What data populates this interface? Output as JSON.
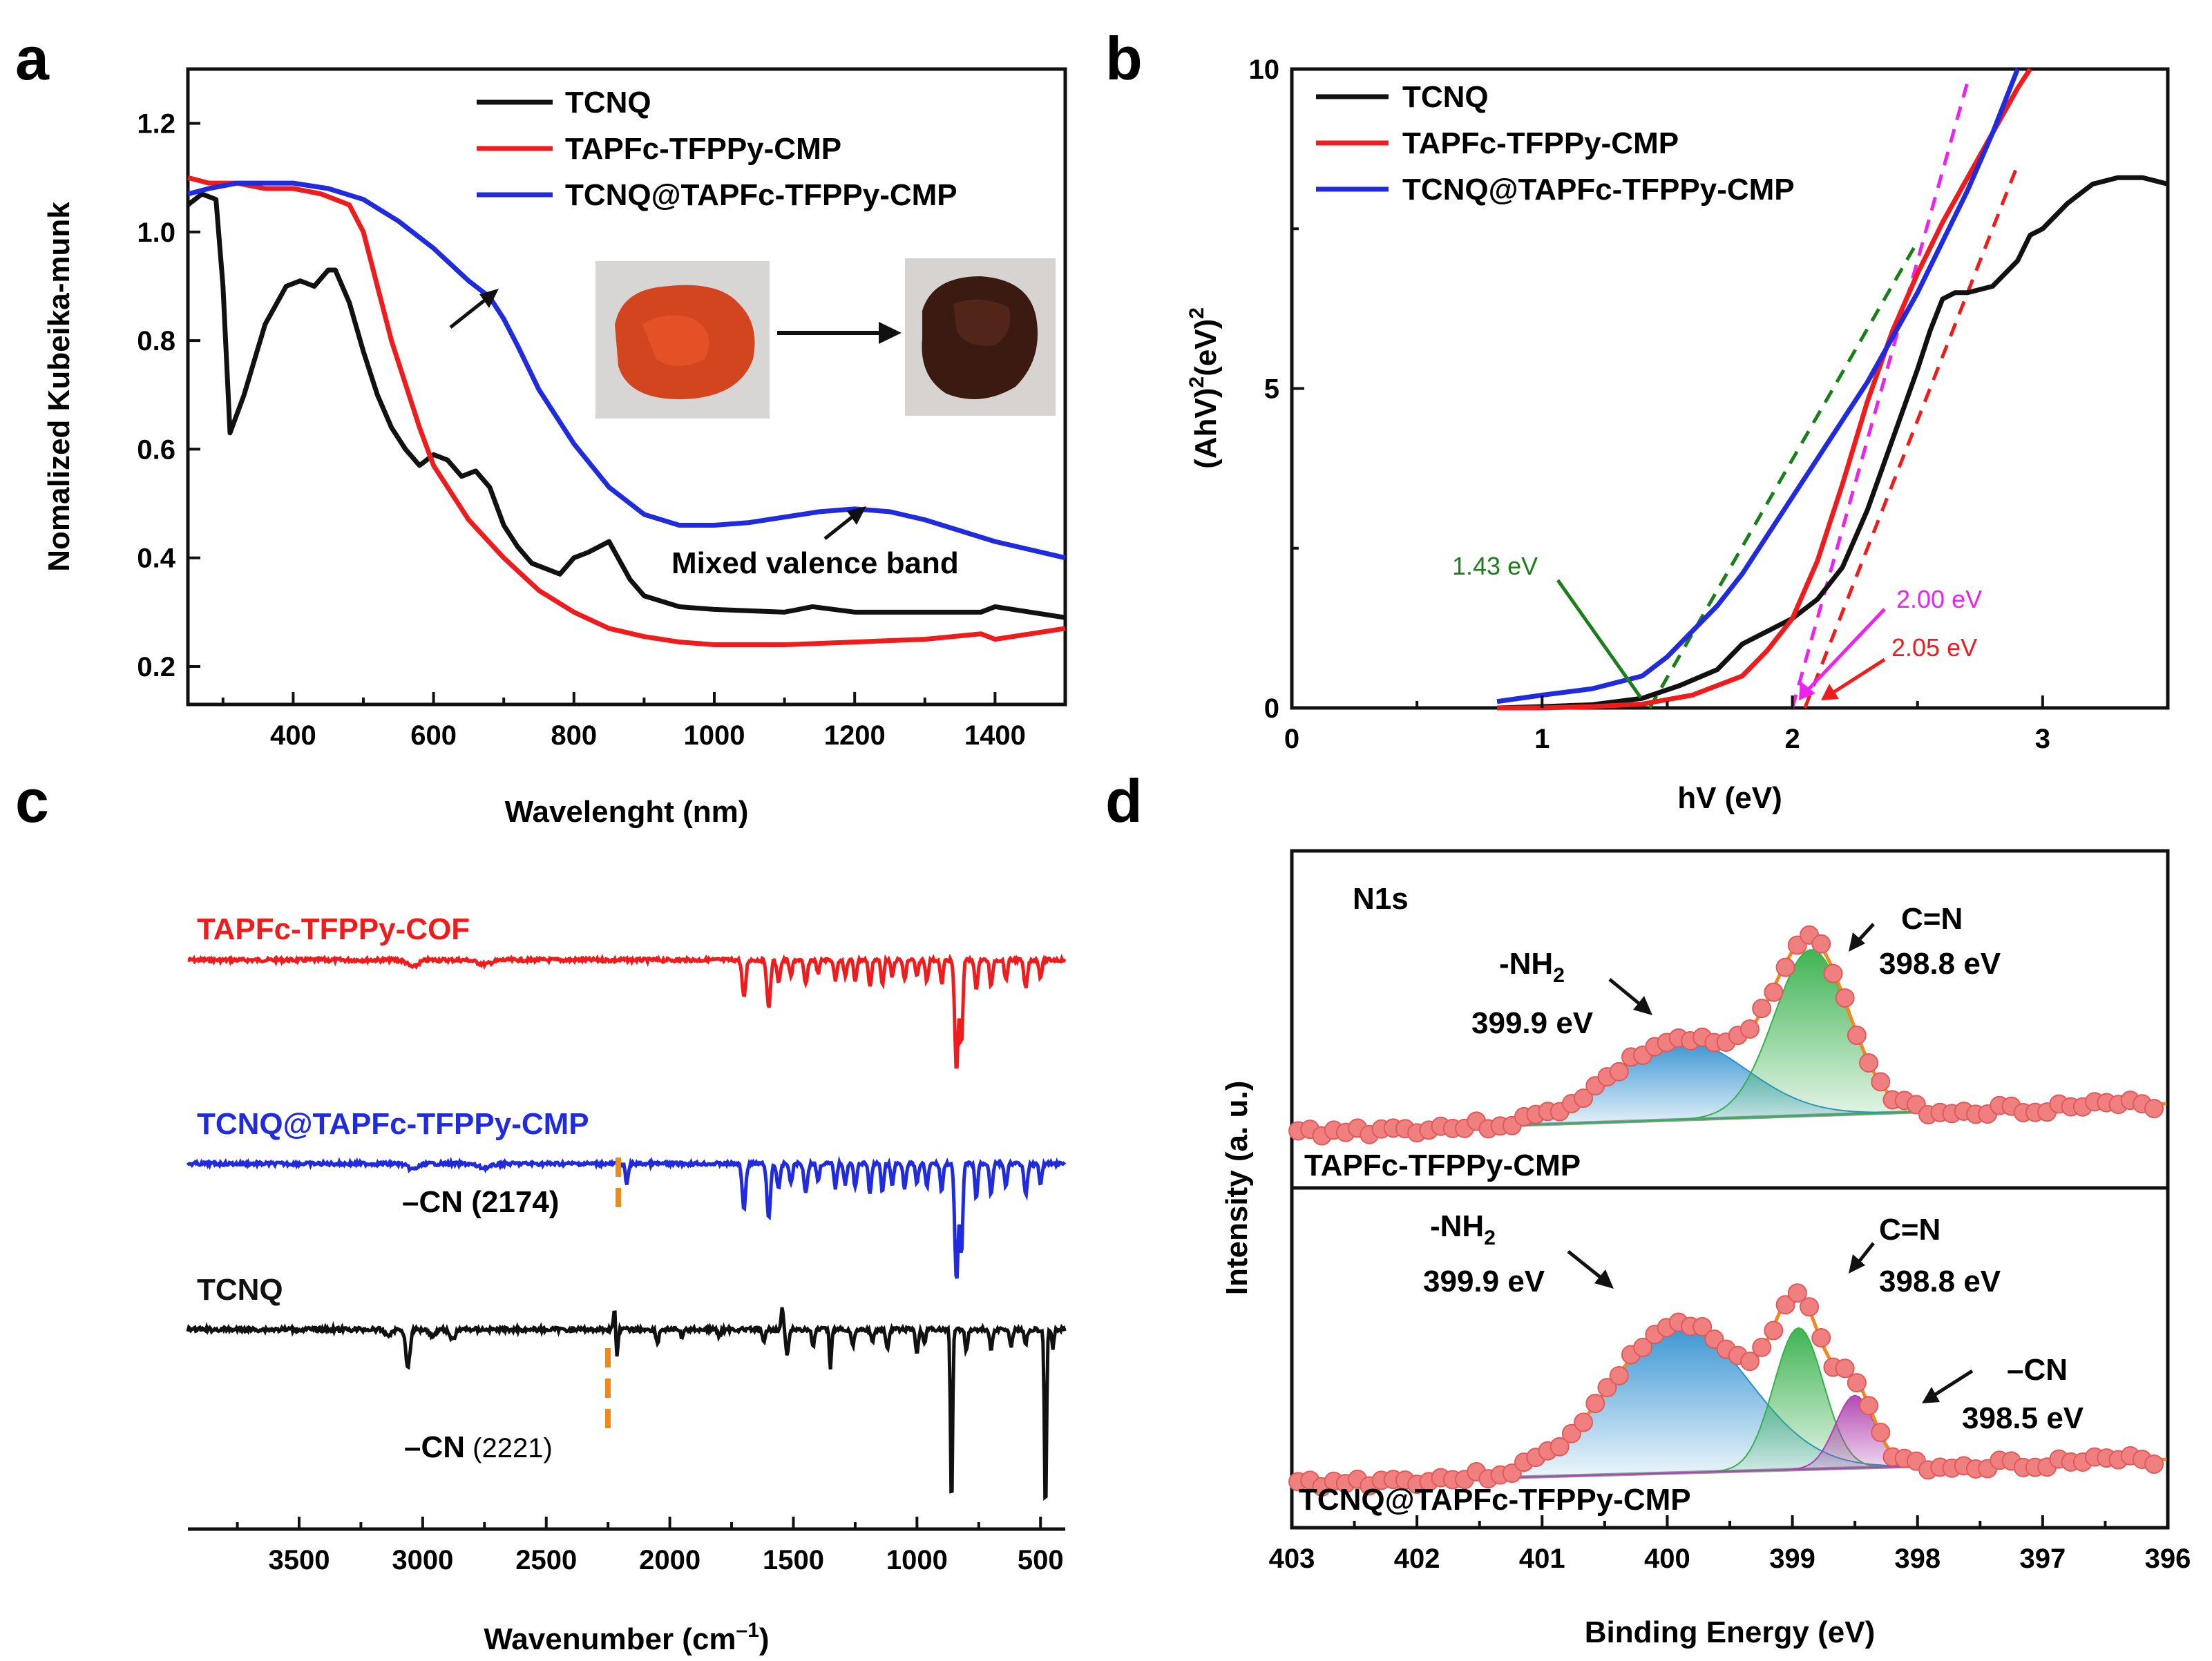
{
  "colors": {
    "black": "#111111",
    "red": "#ee1c1c",
    "blue": "#1f2bdc",
    "green": "#1a7f1a",
    "magenta": "#ee22ee",
    "orange": "#f08a1c",
    "gray": "#9a9a9a",
    "nh2_fill": "#2e8fd0",
    "cn_fill": "#35b04a",
    "cnn_fill": "#b040b0"
  },
  "chart_data": [
    {
      "id": "a",
      "panel_label": "a",
      "type": "line",
      "xlabel": "Wavelenght (nm)",
      "ylabel": "Nomalized Kubeika-munk",
      "xlim": [
        250,
        1500
      ],
      "ylim": [
        0.13,
        1.3
      ],
      "xticks": [
        400,
        600,
        800,
        1000,
        1200,
        1400
      ],
      "yticks": [
        0.2,
        0.4,
        0.6,
        0.8,
        1.0,
        1.2
      ],
      "series": [
        {
          "name": "TCNQ",
          "color": "#111111",
          "x": [
            250,
            270,
            290,
            300,
            310,
            330,
            360,
            390,
            410,
            430,
            450,
            460,
            480,
            500,
            520,
            540,
            560,
            580,
            600,
            620,
            640,
            660,
            680,
            700,
            720,
            740,
            760,
            780,
            800,
            820,
            850,
            880,
            900,
            950,
            1000,
            1100,
            1140,
            1200,
            1300,
            1380,
            1400,
            1450,
            1500
          ],
          "y": [
            1.05,
            1.07,
            1.06,
            0.9,
            0.63,
            0.7,
            0.83,
            0.9,
            0.91,
            0.9,
            0.93,
            0.93,
            0.87,
            0.78,
            0.7,
            0.64,
            0.6,
            0.57,
            0.59,
            0.58,
            0.55,
            0.56,
            0.53,
            0.46,
            0.42,
            0.39,
            0.38,
            0.37,
            0.4,
            0.41,
            0.43,
            0.36,
            0.33,
            0.31,
            0.305,
            0.3,
            0.31,
            0.3,
            0.3,
            0.3,
            0.31,
            0.3,
            0.29
          ]
        },
        {
          "name": "TAPFc-TFPPy-CMP",
          "color": "#ee1c1c",
          "x": [
            250,
            280,
            320,
            360,
            400,
            440,
            480,
            500,
            520,
            540,
            560,
            580,
            600,
            650,
            700,
            750,
            800,
            850,
            900,
            950,
            1000,
            1100,
            1200,
            1300,
            1380,
            1400,
            1450,
            1500
          ],
          "y": [
            1.1,
            1.09,
            1.09,
            1.08,
            1.08,
            1.07,
            1.05,
            1.0,
            0.9,
            0.8,
            0.72,
            0.64,
            0.57,
            0.47,
            0.4,
            0.34,
            0.3,
            0.27,
            0.255,
            0.245,
            0.24,
            0.24,
            0.245,
            0.25,
            0.26,
            0.25,
            0.26,
            0.27
          ]
        },
        {
          "name": "TCNQ@TAPFc-TFPPy-CMP",
          "color": "#1f2bdc",
          "x": [
            250,
            280,
            320,
            360,
            400,
            450,
            500,
            550,
            600,
            650,
            680,
            700,
            720,
            750,
            800,
            850,
            900,
            950,
            1000,
            1050,
            1100,
            1150,
            1200,
            1250,
            1300,
            1350,
            1400,
            1450,
            1500
          ],
          "y": [
            1.07,
            1.08,
            1.09,
            1.09,
            1.09,
            1.08,
            1.06,
            1.02,
            0.97,
            0.91,
            0.88,
            0.84,
            0.79,
            0.71,
            0.61,
            0.53,
            0.48,
            0.46,
            0.46,
            0.465,
            0.475,
            0.485,
            0.49,
            0.485,
            0.47,
            0.45,
            0.43,
            0.415,
            0.4
          ]
        }
      ],
      "legend": [
        "TCNQ",
        "TAPFc-TFPPy-CMP",
        "TCNQ@TAPFc-TFPPy-CMP"
      ],
      "annotations": [
        "Mixed valence band"
      ]
    },
    {
      "id": "b",
      "panel_label": "b",
      "type": "line",
      "xlabel": "hV (eV)",
      "ylabel": "(AhV)²(eV)²",
      "xlim": [
        0,
        3.5
      ],
      "ylim": [
        0,
        10
      ],
      "xticks": [
        0,
        1,
        2,
        3
      ],
      "yticks": [
        0,
        5,
        10
      ],
      "series": [
        {
          "name": "TCNQ",
          "color": "#111111",
          "x": [
            0.82,
            1.0,
            1.2,
            1.4,
            1.55,
            1.7,
            1.8,
            1.9,
            2.0,
            2.1,
            2.2,
            2.3,
            2.4,
            2.5,
            2.55,
            2.6,
            2.65,
            2.7,
            2.8,
            2.9,
            2.95,
            3.0,
            3.1,
            3.2,
            3.3,
            3.4,
            3.5
          ],
          "y": [
            0.0,
            0.02,
            0.05,
            0.15,
            0.35,
            0.6,
            1.0,
            1.2,
            1.4,
            1.7,
            2.2,
            3.1,
            4.2,
            5.3,
            5.9,
            6.4,
            6.5,
            6.5,
            6.6,
            7.0,
            7.4,
            7.5,
            7.9,
            8.2,
            8.3,
            8.3,
            8.2
          ]
        },
        {
          "name": "TAPFc-TFPPy-CMP",
          "color": "#ee1c1c",
          "x": [
            0.82,
            1.0,
            1.2,
            1.4,
            1.6,
            1.8,
            1.9,
            2.0,
            2.1,
            2.2,
            2.3,
            2.4,
            2.5,
            2.6,
            2.7,
            2.8,
            2.9,
            2.95
          ],
          "y": [
            0.0,
            0.0,
            0.02,
            0.06,
            0.2,
            0.5,
            0.9,
            1.4,
            2.3,
            3.5,
            4.8,
            5.9,
            6.8,
            7.6,
            8.3,
            9.0,
            9.7,
            10.0
          ]
        },
        {
          "name": "TCNQ@TAPFc-TFPPy-CMP",
          "color": "#1f2bdc",
          "x": [
            0.82,
            1.0,
            1.2,
            1.4,
            1.5,
            1.6,
            1.7,
            1.8,
            1.9,
            2.0,
            2.1,
            2.2,
            2.3,
            2.4,
            2.5,
            2.6,
            2.7,
            2.8,
            2.9
          ],
          "y": [
            0.1,
            0.2,
            0.3,
            0.5,
            0.8,
            1.2,
            1.6,
            2.1,
            2.7,
            3.3,
            3.9,
            4.5,
            5.1,
            5.8,
            6.5,
            7.3,
            8.1,
            9.0,
            10.0
          ]
        }
      ],
      "fits": [
        {
          "color": "#1a7f1a",
          "x": [
            1.43,
            2.5
          ],
          "y": [
            0,
            7.3
          ]
        },
        {
          "color": "#ee22ee",
          "x": [
            2.0,
            2.7
          ],
          "y": [
            0,
            9.8
          ]
        },
        {
          "color": "#ee1c1c",
          "x": [
            2.05,
            2.9
          ],
          "y": [
            0,
            8.5
          ]
        }
      ],
      "legend": [
        "TCNQ",
        "TAPFc-TFPPy-CMP",
        "TCNQ@TAPFc-TFPPy-CMP"
      ],
      "annotations": [
        "1.43 eV",
        "2.00 eV",
        "2.05 eV"
      ]
    },
    {
      "id": "c",
      "panel_label": "c",
      "type": "line",
      "xlabel": "Wavenumber (cm⁻¹)",
      "xlim": [
        3950,
        400
      ],
      "xticks": [
        3500,
        3000,
        2500,
        2000,
        1500,
        1000,
        500
      ],
      "series": [
        {
          "name": "TAPFc-TFPPy-COF",
          "color": "#ee1c1c"
        },
        {
          "name": "TCNQ@TAPFc-TFPPy-CMP",
          "color": "#1f2bdc"
        },
        {
          "name": "TCNQ",
          "color": "#111111"
        }
      ],
      "annotations": [
        "–CN (2174)",
        "–CN (2221)"
      ]
    },
    {
      "id": "d",
      "panel_label": "d",
      "type": "line",
      "xlabel": "Binding Energy (eV)",
      "ylabel": "Intensity (a. u.)",
      "xlim": [
        403,
        396
      ],
      "xticks": [
        403,
        402,
        401,
        400,
        399,
        398,
        397,
        396
      ],
      "title": "N1s",
      "subpanels": [
        {
          "sample": "TAPFc-TFPPy-CMP",
          "peaks": [
            {
              "label": "-NH₂",
              "energy": "399.9 eV"
            },
            {
              "label": "C=N",
              "energy": "398.8 eV"
            }
          ]
        },
        {
          "sample": "TCNQ@TAPFc-TFPPy-CMP",
          "peaks": [
            {
              "label": "-NH₂",
              "energy": "399.9 eV"
            },
            {
              "label": "C=N",
              "energy": "398.8 eV"
            },
            {
              "label": "–CN",
              "energy": "398.5 eV"
            }
          ]
        }
      ]
    }
  ],
  "text": {
    "a": {
      "letter": "a",
      "xlabel": "Wavelenght (nm)",
      "ylabel": "Nomalized Kubeika-munk",
      "leg1": "TCNQ",
      "leg2": "TAPFc-TFPPy-CMP",
      "leg3": "TCNQ@TAPFc-TFPPy-CMP",
      "mvb": "Mixed valence band"
    },
    "b": {
      "letter": "b",
      "xlabel": "hV (eV)",
      "ylabel_main": "(AhV)",
      "ylabel_sup1": "2",
      "ylabel_mid": "(eV)",
      "ylabel_sup2": "2",
      "leg1": "TCNQ",
      "leg2": "TAPFc-TFPPy-CMP",
      "leg3": "TCNQ@TAPFc-TFPPy-CMP",
      "e1": "1.43 eV",
      "e2": "2.00 eV",
      "e3": "2.05 eV"
    },
    "c": {
      "letter": "c",
      "xlabel_main": "Wavenumber (cm",
      "xlabel_sup": "–1",
      "xlabel_end": ")",
      "s1": "TAPFc-TFPPy-COF",
      "s2": "TCNQ@TAPFc-TFPPy-CMP",
      "s3": "TCNQ",
      "cn1_main": "–CN",
      "cn1_val": " (2174)",
      "cn2_main": "–CN",
      "cn2_val": " (2221)"
    },
    "d": {
      "letter": "d",
      "xlabel": "Binding Energy (eV)",
      "ylabel": "Intensity (a. u.)",
      "n1s": "N1s",
      "top_sample": "TAPFc-TFPPy-CMP",
      "bot_sample": "TCNQ@TAPFc-TFPPy-CMP",
      "nh2_main": "-NH",
      "nh2_sub": "2",
      "nh2_e": "399.9 eV",
      "cn_label": "C=N",
      "cn_e": "398.8 eV",
      "ccn_label": "–CN",
      "ccn_e": "398.5 eV"
    }
  }
}
